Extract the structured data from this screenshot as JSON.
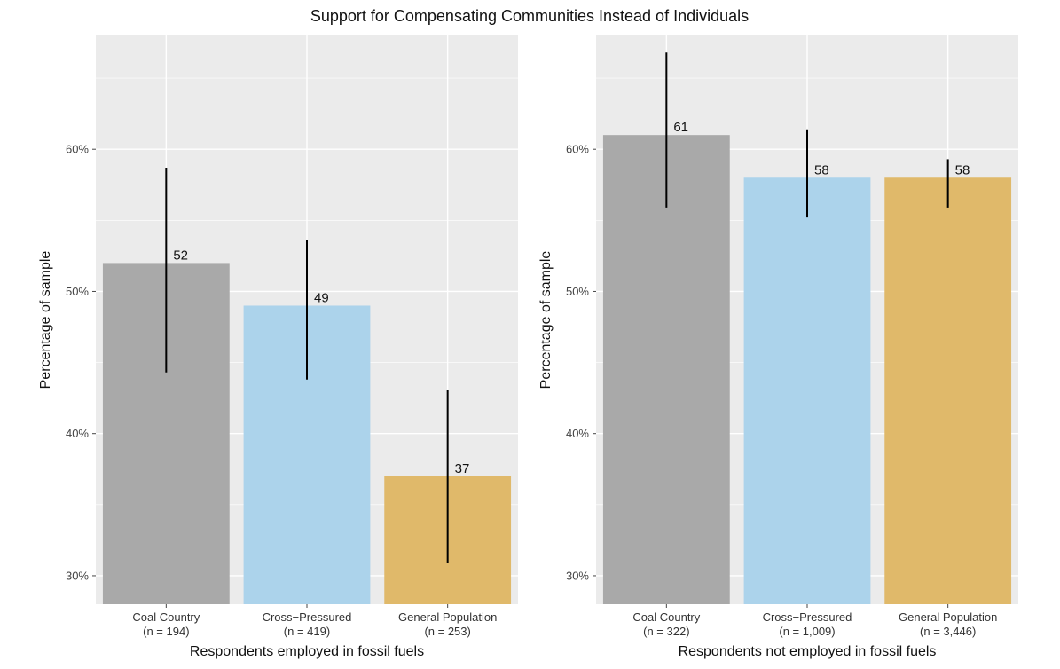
{
  "figure_title": "Support for Compensating Communities Instead of Individuals",
  "colors": {
    "coal": "#a9a9a9",
    "cross": "#acd3eb",
    "general": "#e0b96a",
    "panel_bg": "#ebebeb",
    "grid": "#ffffff",
    "error_bar": "#000000"
  },
  "chart_data": [
    {
      "type": "bar",
      "title": "Support for Compensating Communities Instead of Individuals",
      "xlabel": "Respondents employed in fossil fuels",
      "ylabel": "Percentage of sample",
      "ylim": [
        28,
        68
      ],
      "yticks": [
        30,
        40,
        50,
        60
      ],
      "ytick_labels": [
        "30%",
        "40%",
        "50%",
        "60%"
      ],
      "grid": true,
      "categories": [
        "Coal Country",
        "Cross−Pressured",
        "General Population"
      ],
      "sample_sizes": [
        "(n = 194)",
        "(n = 419)",
        "(n = 253)"
      ],
      "values": [
        52,
        49,
        37
      ],
      "value_labels": [
        "52",
        "49",
        "37"
      ],
      "error_low": [
        44.3,
        43.8,
        30.9
      ],
      "error_high": [
        58.7,
        53.6,
        43.1
      ],
      "color_keys": [
        "coal",
        "cross",
        "general"
      ]
    },
    {
      "type": "bar",
      "title": "Support for Compensating Communities Instead of Individuals",
      "xlabel": "Respondents not employed in fossil fuels",
      "ylabel": "Percentage of sample",
      "ylim": [
        28,
        68
      ],
      "yticks": [
        30,
        40,
        50,
        60
      ],
      "ytick_labels": [
        "30%",
        "40%",
        "50%",
        "60%"
      ],
      "grid": true,
      "categories": [
        "Coal Country",
        "Cross−Pressured",
        "General Population"
      ],
      "sample_sizes": [
        "(n = 322)",
        "(n = 1,009)",
        "(n = 3,446)"
      ],
      "values": [
        61,
        58,
        58
      ],
      "value_labels": [
        "61",
        "58",
        "58"
      ],
      "error_low": [
        55.9,
        55.2,
        55.9
      ],
      "error_high": [
        66.8,
        61.4,
        59.3
      ],
      "color_keys": [
        "coal",
        "cross",
        "general"
      ]
    }
  ]
}
